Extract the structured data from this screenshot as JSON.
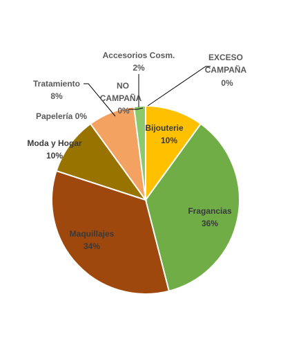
{
  "chart_data": {
    "type": "pie",
    "start_angle_deg": 0,
    "direction": "clockwise",
    "slices": [
      {
        "label": "Bijouterie",
        "value_label": "10%",
        "value": 10,
        "color": "#FFC000",
        "text_color": "#3a3a3a"
      },
      {
        "label": "Fragancias",
        "value_label": "36%",
        "value": 36,
        "color": "#70AD47",
        "text_color": "#3a3a3a"
      },
      {
        "label": "Maquillajes",
        "value_label": "34%",
        "value": 34,
        "color": "#9E480E",
        "text_color": "#3a3a3a"
      },
      {
        "label": "Moda y Hogar",
        "value_label": "10%",
        "value": 10,
        "color": "#997300",
        "text_color": "#3a3a3a"
      },
      {
        "label": "Papelería",
        "value_label": "0%",
        "value": 0,
        "color": "#A5A5A5",
        "text_color": "#595959"
      },
      {
        "label": "Tratamiento",
        "value_label": "8%",
        "value": 8,
        "color": "#F4A261",
        "text_color": "#595959"
      },
      {
        "label": "NO CAMPAÑA",
        "value_label": "0%",
        "value": 0,
        "color": "#5B9BD5",
        "text_color": "#595959"
      },
      {
        "label": "Accesorios Cosm.",
        "value_label": "2%",
        "value": 2,
        "color": "#8CC96B",
        "text_color": "#595959"
      },
      {
        "label": "EXCESO CAMPAÑA",
        "value_label": "0%",
        "value": 0,
        "color": "#264478",
        "text_color": "#595959"
      }
    ]
  }
}
